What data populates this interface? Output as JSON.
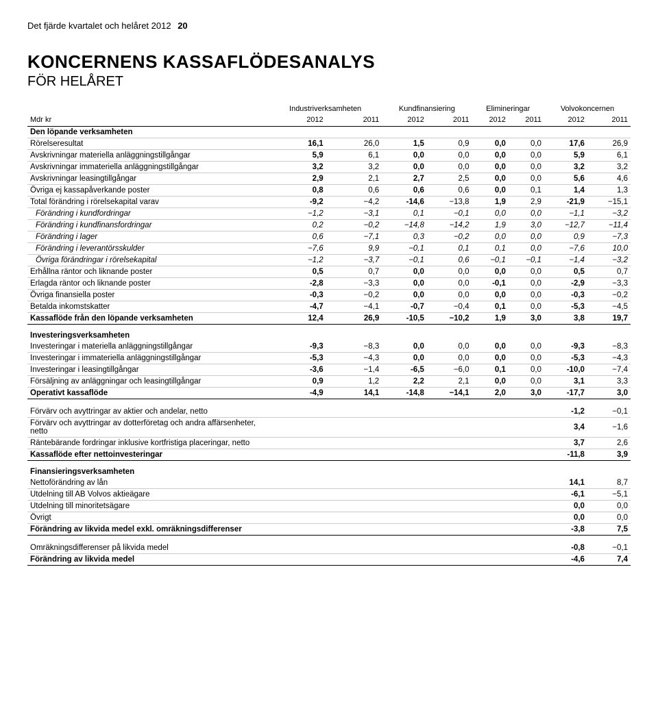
{
  "page_header": {
    "text": "Det fjärde kvartalet och helåret 2012",
    "number": "20"
  },
  "title": "KONCERNENS KASSAFLÖDESANALYS",
  "subtitle": "FÖR HELÅRET",
  "group_headers": [
    "",
    "Industriverksamheten",
    "Kundfinansiering",
    "Elimineringar",
    "Volvokoncernen"
  ],
  "year_headers": [
    "Mdr kr",
    "2012",
    "2011",
    "2012",
    "2011",
    "2012",
    "2011",
    "2012",
    "2011"
  ],
  "rows": [
    {
      "type": "section",
      "cells": [
        "Den löpande verksamheten",
        "",
        "",
        "",
        "",
        "",
        "",
        "",
        ""
      ]
    },
    {
      "type": "plain",
      "cells": [
        "Rörelseresultat",
        "16,1",
        "26,0",
        "1,5",
        "0,9",
        "0,0",
        "0,0",
        "17,6",
        "26,9"
      ]
    },
    {
      "type": "plain",
      "cells": [
        "Avskrivningar materiella anläggningstillgångar",
        "5,9",
        "6,1",
        "0,0",
        "0,0",
        "0,0",
        "0,0",
        "5,9",
        "6,1"
      ]
    },
    {
      "type": "plain",
      "cells": [
        "Avskrivningar immateriella anläggningstillgångar",
        "3,2",
        "3,2",
        "0,0",
        "0,0",
        "0,0",
        "0,0",
        "3,2",
        "3,2"
      ]
    },
    {
      "type": "plain",
      "cells": [
        "Avskrivningar leasingtillgångar",
        "2,9",
        "2,1",
        "2,7",
        "2,5",
        "0,0",
        "0,0",
        "5,6",
        "4,6"
      ]
    },
    {
      "type": "plain",
      "cells": [
        "Övriga ej kassapåverkande poster",
        "0,8",
        "0,6",
        "0,6",
        "0,6",
        "0,0",
        "0,1",
        "1,4",
        "1,3"
      ]
    },
    {
      "type": "plain",
      "cells": [
        "Total förändring i rörelsekapital varav",
        "-9,2",
        "−4,2",
        "-14,6",
        "−13,8",
        "1,9",
        "2,9",
        "-21,9",
        "−15,1"
      ]
    },
    {
      "type": "italic",
      "cells": [
        "Förändring i kundfordringar",
        "−1,2",
        "−3,1",
        "0,1",
        "−0,1",
        "0,0",
        "0,0",
        "−1,1",
        "−3,2"
      ]
    },
    {
      "type": "italic",
      "cells": [
        "Förändring i kundfinansfordringar",
        "0,2",
        "−0,2",
        "−14,8",
        "−14,2",
        "1,9",
        "3,0",
        "−12,7",
        "−11,4"
      ]
    },
    {
      "type": "italic",
      "cells": [
        "Förändring i lager",
        "0,6",
        "−7,1",
        "0,3",
        "−0,2",
        "0,0",
        "0,0",
        "0,9",
        "−7,3"
      ]
    },
    {
      "type": "italic",
      "cells": [
        "Förändring i leverantörsskulder",
        "−7,6",
        "9,9",
        "−0,1",
        "0,1",
        "0,1",
        "0,0",
        "−7,6",
        "10,0"
      ]
    },
    {
      "type": "italic",
      "cells": [
        "Övriga förändringar i rörelsekapital",
        "−1,2",
        "−3,7",
        "−0,1",
        "0,6",
        "−0,1",
        "−0,1",
        "−1,4",
        "−3,2"
      ]
    },
    {
      "type": "plain",
      "cells": [
        "Erhållna räntor och liknande poster",
        "0,5",
        "0,7",
        "0,0",
        "0,0",
        "0,0",
        "0,0",
        "0,5",
        "0,7"
      ]
    },
    {
      "type": "plain",
      "cells": [
        "Erlagda räntor och liknande poster",
        "-2,8",
        "−3,3",
        "0,0",
        "0,0",
        "-0,1",
        "0,0",
        "-2,9",
        "−3,3"
      ]
    },
    {
      "type": "plain",
      "cells": [
        "Övriga finansiella poster",
        "-0,3",
        "−0,2",
        "0,0",
        "0,0",
        "0,0",
        "0,0",
        "-0,3",
        "−0,2"
      ]
    },
    {
      "type": "plain",
      "cells": [
        "Betalda inkomstskatter",
        "-4,7",
        "−4,1",
        "-0,7",
        "−0,4",
        "0,1",
        "0,0",
        "-5,3",
        "−4,5"
      ]
    },
    {
      "type": "bold",
      "cells": [
        "Kassaflöde från den löpande verksamheten",
        "12,4",
        "26,9",
        "-10,5",
        "−10,2",
        "1,9",
        "3,0",
        "3,8",
        "19,7"
      ]
    },
    {
      "type": "section-break",
      "cells": [
        "Investeringsverksamheten",
        "",
        "",
        "",
        "",
        "",
        "",
        "",
        ""
      ]
    },
    {
      "type": "plain",
      "cells": [
        "Investeringar i materiella anläggningstillgångar",
        "-9,3",
        "−8,3",
        "0,0",
        "0,0",
        "0,0",
        "0,0",
        "-9,3",
        "−8,3"
      ]
    },
    {
      "type": "plain",
      "cells": [
        "Investeringar i immateriella anläggningstillgångar",
        "-5,3",
        "−4,3",
        "0,0",
        "0,0",
        "0,0",
        "0,0",
        "-5,3",
        "−4,3"
      ]
    },
    {
      "type": "plain",
      "cells": [
        "Investeringar i leasingtillgångar",
        "-3,6",
        "−1,4",
        "-6,5",
        "−6,0",
        "0,1",
        "0,0",
        "-10,0",
        "−7,4"
      ]
    },
    {
      "type": "plain",
      "cells": [
        "Försäljning av anläggningar och leasingtillgångar",
        "0,9",
        "1,2",
        "2,2",
        "2,1",
        "0,0",
        "0,0",
        "3,1",
        "3,3"
      ]
    },
    {
      "type": "bold",
      "cells": [
        "Operativt kassaflöde",
        "-4,9",
        "14,1",
        "-14,8",
        "−14,1",
        "2,0",
        "3,0",
        "-17,7",
        "3,0"
      ]
    },
    {
      "type": "spacer",
      "cells": [
        "",
        "",
        "",
        "",
        "",
        "",
        "",
        "",
        ""
      ]
    },
    {
      "type": "plain",
      "cells": [
        "Förvärv och avyttringar av aktier och andelar, netto",
        "",
        "",
        "",
        "",
        "",
        "",
        "-1,2",
        "−0,1"
      ]
    },
    {
      "type": "plain",
      "cells": [
        "Förvärv och avyttringar av dotterföretag och andra affärsenheter, netto",
        "",
        "",
        "",
        "",
        "",
        "",
        "3,4",
        "−1,6"
      ]
    },
    {
      "type": "plain",
      "cells": [
        "Räntebärande fordringar inklusive kortfristiga placeringar, netto",
        "",
        "",
        "",
        "",
        "",
        "",
        "3,7",
        "2,6"
      ]
    },
    {
      "type": "bold",
      "cells": [
        "Kassaflöde efter nettoinvesteringar",
        "",
        "",
        "",
        "",
        "",
        "",
        "-11,8",
        "3,9"
      ]
    },
    {
      "type": "section-break",
      "cells": [
        "Finansieringsverksamheten",
        "",
        "",
        "",
        "",
        "",
        "",
        "",
        ""
      ]
    },
    {
      "type": "plain",
      "cells": [
        "Nettoförändring av lån",
        "",
        "",
        "",
        "",
        "",
        "",
        "14,1",
        "8,7"
      ]
    },
    {
      "type": "plain",
      "cells": [
        "Utdelning till AB Volvos aktieägare",
        "",
        "",
        "",
        "",
        "",
        "",
        "-6,1",
        "−5,1"
      ]
    },
    {
      "type": "plain",
      "cells": [
        "Utdelning till minoritetsägare",
        "",
        "",
        "",
        "",
        "",
        "",
        "0,0",
        "0,0"
      ]
    },
    {
      "type": "plain",
      "cells": [
        "Övrigt",
        "",
        "",
        "",
        "",
        "",
        "",
        "0,0",
        "0,0"
      ]
    },
    {
      "type": "bold",
      "cells": [
        "Förändring av likvida medel exkl. omräkningsdifferenser",
        "",
        "",
        "",
        "",
        "",
        "",
        "-3,8",
        "7,5"
      ]
    },
    {
      "type": "spacer",
      "cells": [
        "",
        "",
        "",
        "",
        "",
        "",
        "",
        "",
        ""
      ]
    },
    {
      "type": "plain",
      "cells": [
        "Omräkningsdifferenser på likvida medel",
        "",
        "",
        "",
        "",
        "",
        "",
        "-0,8",
        "−0,1"
      ]
    },
    {
      "type": "bold",
      "cells": [
        "Förändring av likvida medel",
        "",
        "",
        "",
        "",
        "",
        "",
        "-4,6",
        "7,4"
      ]
    }
  ]
}
